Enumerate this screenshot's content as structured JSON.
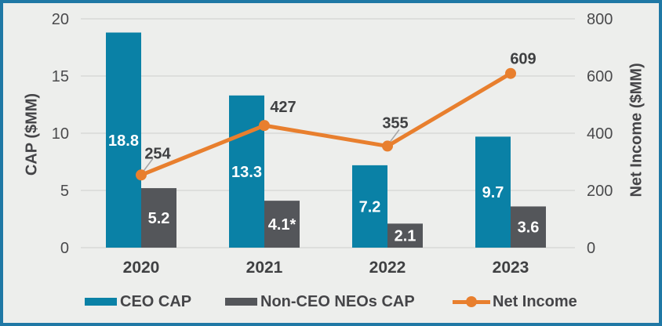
{
  "chart_data": {
    "type": "combo-bar-line",
    "categories": [
      "2020",
      "2021",
      "2022",
      "2023"
    ],
    "series": [
      {
        "name": "CEO CAP",
        "type": "bar",
        "axis": "left",
        "color": "#0a81a6",
        "values": [
          18.8,
          13.3,
          7.2,
          9.7
        ],
        "labels": [
          "18.8",
          "13.3",
          "7.2",
          "9.7"
        ]
      },
      {
        "name": "Non-CEO NEOs CAP",
        "type": "bar",
        "axis": "left",
        "color": "#54565a",
        "values": [
          5.2,
          4.1,
          2.1,
          3.6
        ],
        "labels": [
          "5.2",
          "4.1*",
          "2.1",
          "3.6"
        ]
      },
      {
        "name": "Net Income",
        "type": "line",
        "axis": "right",
        "color": "#e87f2e",
        "values": [
          254,
          427,
          355,
          609
        ],
        "labels": [
          "254",
          "427",
          "355",
          "609"
        ]
      }
    ],
    "left_axis": {
      "title": "CAP ($MM)",
      "ticks": [
        0,
        5,
        10,
        15,
        20
      ],
      "min": 0,
      "max": 20
    },
    "right_axis": {
      "title": "Net Income ($MM)",
      "ticks": [
        0,
        200,
        400,
        600,
        800
      ],
      "min": 0,
      "max": 800
    },
    "grid": true,
    "legend_position": "bottom"
  },
  "colors": {
    "frame_border": "#1f78a5",
    "background": "#edeeec",
    "gridline": "#d8d8d6",
    "tick_text": "#4a4a4c",
    "label_text": "#3f4042",
    "bar_value_text": "#ffffff",
    "leader_line": "#a6a6a6"
  }
}
